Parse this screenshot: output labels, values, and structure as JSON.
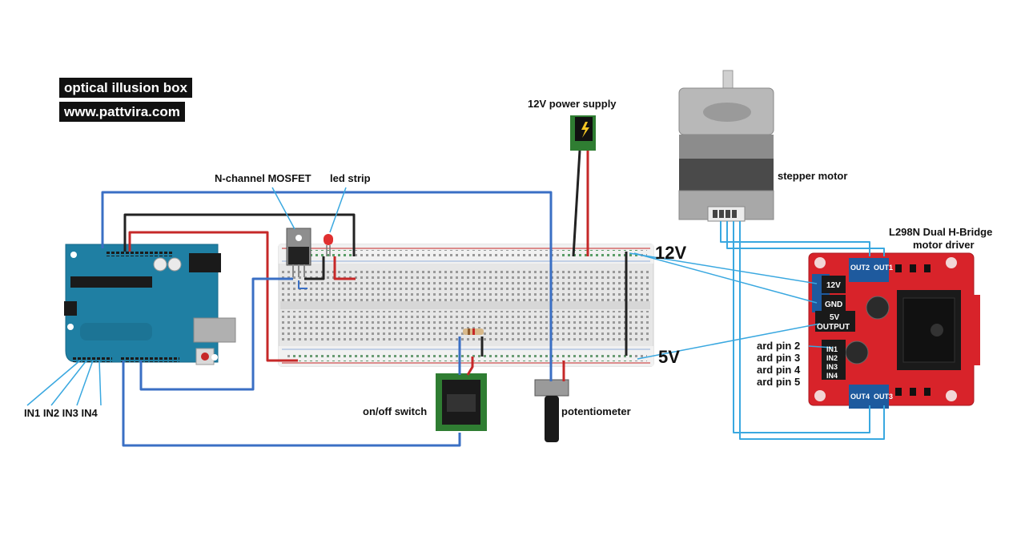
{
  "title_tags": {
    "project": "optical illusion box",
    "website": "www.pattvira.com"
  },
  "labels": {
    "power_supply": "12V power supply",
    "mosfet": "N-channel MOSFET",
    "led_strip": "led strip",
    "stepper_motor": "stepper motor",
    "driver_line1": "L298N Dual H-Bridge",
    "driver_line2": "motor driver",
    "rail_12v": "12V",
    "rail_5v": "5V",
    "switch": "on/off switch",
    "potentiometer": "potentiometer",
    "in_pins": "IN1 IN2 IN3 IN4",
    "ard_pin2": "ard pin 2",
    "ard_pin3": "ard pin 3",
    "ard_pin4": "ard pin 4",
    "ard_pin5": "ard pin 5"
  },
  "driver_board": {
    "terminal_12v": "12V",
    "terminal_gnd": "GND",
    "terminal_5v": "5V",
    "terminal_output": "OUTPUT",
    "out1": "OUT1",
    "out2": "OUT2",
    "out3": "OUT3",
    "out4": "OUT4",
    "in1": "IN1",
    "in2": "IN2",
    "in3": "IN3",
    "in4": "IN4"
  },
  "colors": {
    "wire_blue": "#3a6fc4",
    "wire_cyan": "#3aa8e0",
    "wire_red": "#c62828",
    "wire_black": "#222222",
    "arduino_board": "#1f7fa3",
    "driver_board": "#d8232a",
    "breadboard": "#e8e8e8"
  }
}
